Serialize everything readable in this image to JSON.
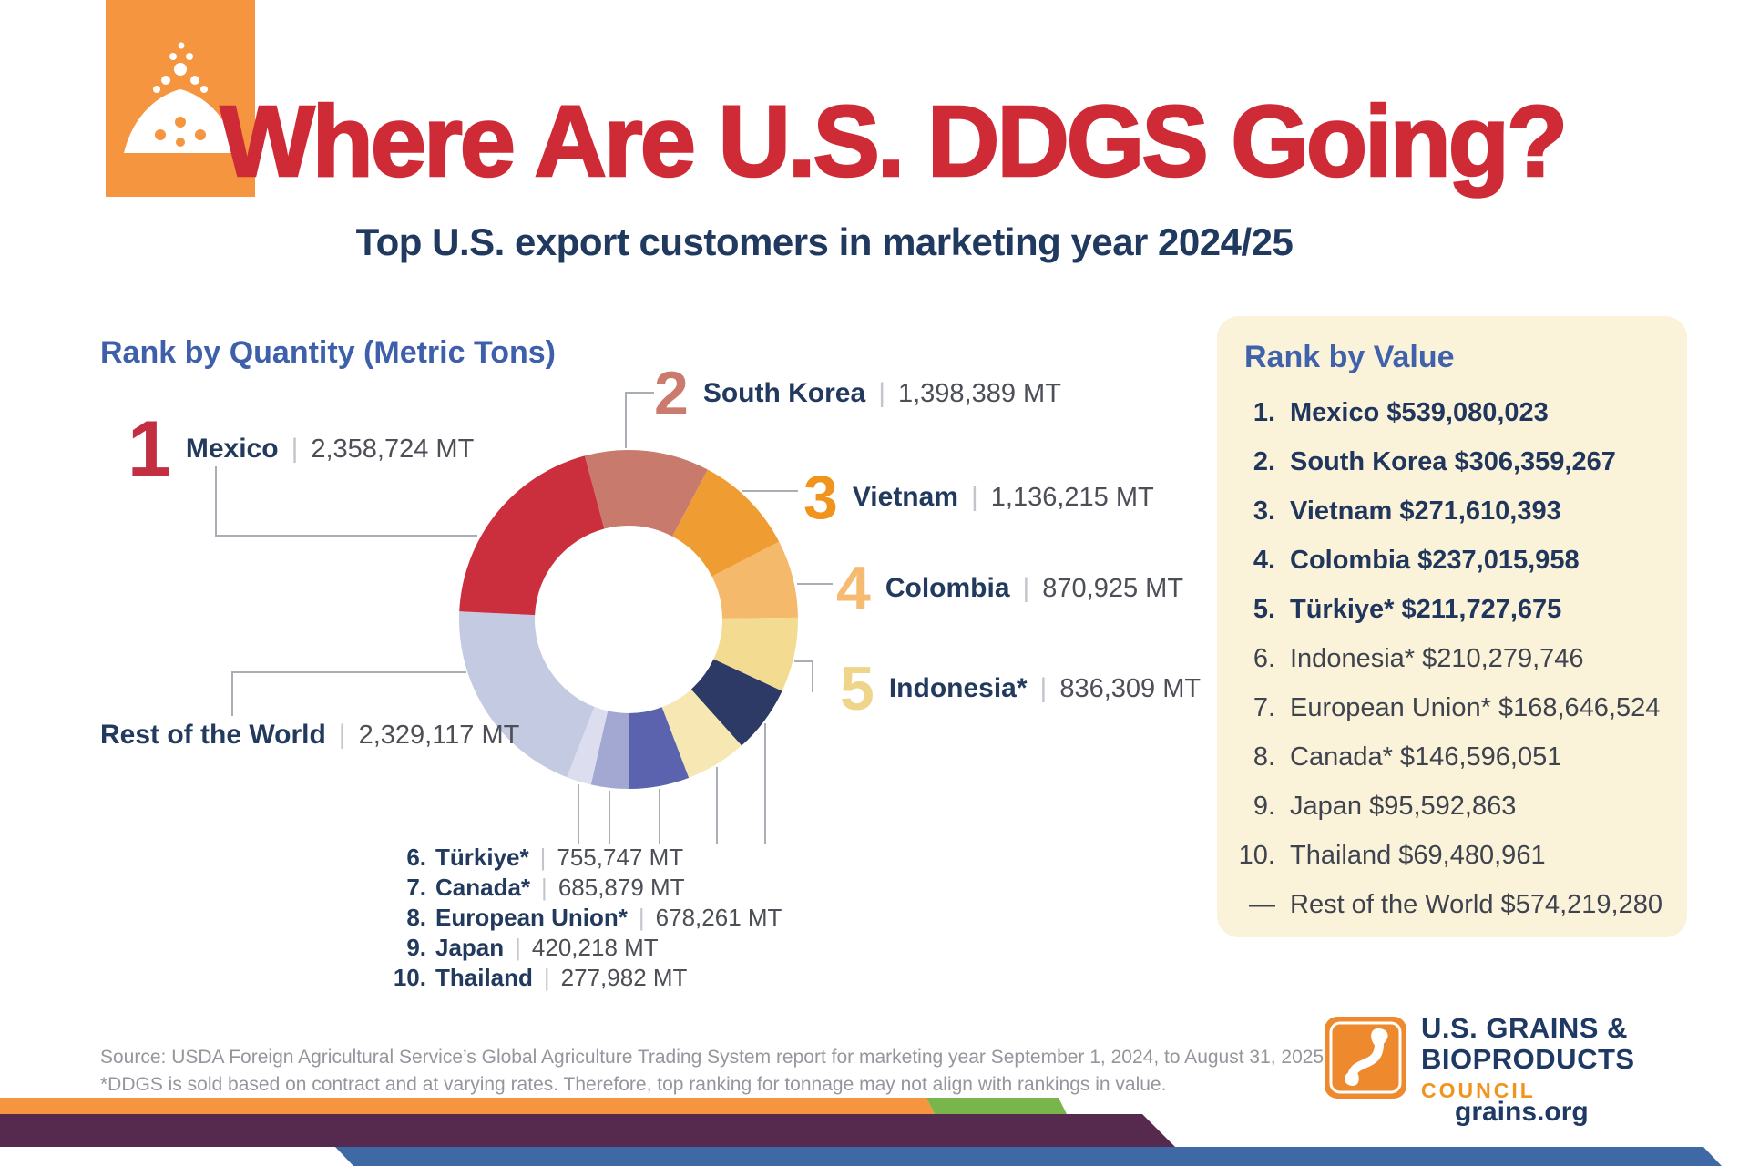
{
  "header": {
    "title": "Where Are U.S. DDGS Going?",
    "subtitle": "Top U.S. export customers in marketing year 2024/25"
  },
  "ui": {
    "sep": "|"
  },
  "colors": {
    "title_red": "#ce2b37",
    "navy": "#223a5e",
    "heading_blue": "#3e5fa9",
    "panel_cream": "#faf3da",
    "brand_orange": "#f6953f",
    "ribbon_green": "#78b54a",
    "ribbon_purple": "#56294e",
    "ribbon_blue": "#3f69a5"
  },
  "quantity_section": {
    "heading": "Rank by Quantity (Metric Tons)",
    "callouts": [
      {
        "num": "1",
        "name": "Mexico",
        "value": "2,358,724 MT",
        "color": "#c32f40"
      },
      {
        "num": "2",
        "name": "South Korea",
        "value": "1,398,389 MT",
        "color": "#ca7b6d"
      },
      {
        "num": "3",
        "name": "Vietnam",
        "value": "1,136,215 MT",
        "color": "#f0941d"
      },
      {
        "num": "4",
        "name": "Colombia",
        "value": "870,925 MT",
        "color": "#f6ba70"
      },
      {
        "num": "5",
        "name": "Indonesia*",
        "value": "836,309 MT",
        "color": "#efd58a"
      },
      {
        "num": "",
        "name": "Rest of the World",
        "value": "2,329,117 MT",
        "color": ""
      }
    ],
    "bottom_list": [
      {
        "rank": "6.",
        "name": "Türkiye*",
        "value": "755,747 MT"
      },
      {
        "rank": "7.",
        "name": "Canada*",
        "value": "685,879 MT"
      },
      {
        "rank": "8.",
        "name": "European Union*",
        "value": "678,261 MT"
      },
      {
        "rank": "9.",
        "name": "Japan",
        "value": "420,218 MT"
      },
      {
        "rank": "10.",
        "name": "Thailand",
        "value": "277,982 MT"
      }
    ]
  },
  "value_panel": {
    "heading": "Rank by Value",
    "items": [
      {
        "rank": "1.",
        "text": "Mexico $539,080,023",
        "bold": true
      },
      {
        "rank": "2.",
        "text": "South Korea $306,359,267",
        "bold": true
      },
      {
        "rank": "3.",
        "text": "Vietnam $271,610,393",
        "bold": true
      },
      {
        "rank": "4.",
        "text": "Colombia $237,015,958",
        "bold": true
      },
      {
        "rank": "5.",
        "text": "Türkiye* $211,727,675",
        "bold": true
      },
      {
        "rank": "6.",
        "text": "Indonesia* $210,279,746",
        "bold": false
      },
      {
        "rank": "7.",
        "text": "European Union* $168,646,524",
        "bold": false
      },
      {
        "rank": "8.",
        "text": "Canada* $146,596,051",
        "bold": false
      },
      {
        "rank": "9.",
        "text": "Japan $95,592,863",
        "bold": false
      },
      {
        "rank": "10.",
        "text": "Thailand $69,480,961",
        "bold": false
      },
      {
        "rank": "—",
        "text": "Rest of the World $574,219,280",
        "bold": false
      }
    ]
  },
  "footer": {
    "source_lines": [
      "Source: USDA Foreign Agricultural Service’s Global Agriculture Trading System report for marketing year September 1, 2024, to August 31, 2025.",
      "*DDGS is sold based on contract and at varying rates. Therefore, top ranking for tonnage may not align with rankings in value."
    ],
    "org_name_line1": "U.S. GRAINS &",
    "org_name_line2": "BIOPRODUCTS",
    "org_name_line3": "COUNCIL",
    "website": "grains.org"
  },
  "chart_data": {
    "type": "pie",
    "donut": true,
    "title": "Rank by Quantity (Metric Tons)",
    "unit": "MT",
    "start_angle_deg": -15,
    "total": 11747766,
    "segments": [
      {
        "rank": 2,
        "label": "South Korea",
        "value": 1398389,
        "color": "#c87b6c"
      },
      {
        "rank": 3,
        "label": "Vietnam",
        "value": 1136215,
        "color": "#ef9d32"
      },
      {
        "rank": 4,
        "label": "Colombia",
        "value": 870925,
        "color": "#f4b96b"
      },
      {
        "rank": 5,
        "label": "Indonesia*",
        "value": 836309,
        "color": "#f3dc92"
      },
      {
        "rank": 6,
        "label": "Türkiye*",
        "value": 755747,
        "color": "#2d3a66"
      },
      {
        "rank": 7,
        "label": "Canada*",
        "value": 685879,
        "color": "#f7e8b3"
      },
      {
        "rank": 8,
        "label": "European Union*",
        "value": 678261,
        "color": "#5c63ae"
      },
      {
        "rank": 9,
        "label": "Japan",
        "value": 420218,
        "color": "#a3a8d3"
      },
      {
        "rank": 10,
        "label": "Thailand",
        "value": 277982,
        "color": "#dcdeef"
      },
      {
        "rank": null,
        "label": "Rest of the World",
        "value": 2329117,
        "color": "#c5cae3"
      },
      {
        "rank": 1,
        "label": "Mexico",
        "value": 2358724,
        "color": "#cb2e3c"
      }
    ]
  }
}
